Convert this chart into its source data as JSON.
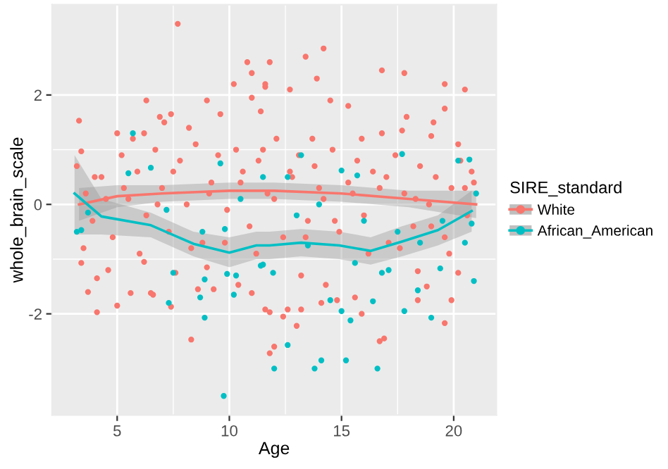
{
  "chart_data": {
    "type": "scatter",
    "xlabel": "Age",
    "ylabel": "whole_brain_scale",
    "legend_title": "SIRE_standard",
    "legend": "right",
    "grid": true,
    "marker": "circle",
    "xlim": [
      2.1,
      21.9
    ],
    "ylim": [
      -3.85,
      3.65
    ],
    "xticks": [
      5,
      10,
      15,
      20
    ],
    "yticks": [
      -2,
      0,
      2
    ],
    "series": [
      {
        "name": "White",
        "color": "#f8766d",
        "x": [
          7.7,
          3.3,
          3.4,
          6.3,
          9.0,
          10.8,
          11.8,
          11.0,
          10.2,
          11.0,
          11.4,
          11.6,
          7.4,
          6.9,
          7.1,
          5.0,
          6.2,
          5.7,
          8.2,
          9.6,
          14.2,
          13.4,
          16.8,
          17.8,
          19.6,
          20.5,
          13.9,
          11.6,
          12.7,
          14.5,
          15.3,
          17.9,
          19.6,
          19.1,
          19.0,
          16.8,
          17.7,
          13.7,
          20.2,
          15.9,
          11.5,
          3.4,
          3.7,
          4.1,
          4.1,
          4.6,
          5.0,
          5.6,
          6.2,
          6.5,
          6.6,
          7.4,
          7.6,
          8.3,
          8.6,
          9.0,
          9.3,
          10.4,
          11.0,
          11.6,
          11.8,
          12.0,
          11.8,
          12.4,
          12.6,
          13.0,
          13.2,
          14.1,
          14.8,
          15.6,
          15.9,
          16.7,
          16.9,
          14.3,
          13.2,
          18.4,
          18.8,
          19.6,
          19.9,
          20.2,
          18.4,
          3.2,
          3.6,
          3.9,
          4.3,
          4.8,
          5.2,
          5.5,
          5.9,
          6.3,
          6.7,
          7.0,
          7.3,
          7.8,
          8.1,
          8.5,
          8.8,
          9.2,
          9.5,
          9.9,
          10.3,
          10.6,
          10.9,
          11.3,
          11.7,
          12.1,
          12.4,
          12.8,
          13.1,
          13.5,
          13.8,
          14.2,
          14.6,
          14.9,
          15.3,
          15.7,
          16.0,
          16.4,
          16.7,
          17.1,
          17.4,
          17.8,
          18.2,
          18.5,
          18.9,
          19.2,
          19.6,
          19.9,
          20.3,
          20.6,
          20.9,
          3.5,
          4.0,
          4.5,
          5.3,
          6.0,
          6.8,
          7.5,
          8.3,
          9.1,
          9.8,
          10.5,
          11.2,
          12.0,
          12.7,
          13.4,
          14.0,
          14.7,
          15.5,
          16.2,
          17.0,
          17.6,
          18.3,
          19.0,
          19.8,
          20.5,
          20.8
        ],
        "values": [
          3.3,
          1.53,
          0.97,
          1.9,
          1.9,
          2.6,
          2.6,
          2.4,
          2.2,
          1.95,
          1.7,
          2.15,
          1.65,
          1.6,
          1.5,
          1.3,
          1.3,
          1.2,
          1.4,
          1.65,
          2.85,
          2.7,
          2.45,
          2.4,
          2.2,
          2.1,
          2.3,
          2.2,
          2.1,
          1.9,
          1.8,
          1.6,
          1.75,
          1.5,
          1.25,
          1.3,
          1.35,
          1.2,
          1.1,
          1.2,
          1.0,
          -1.07,
          -1.6,
          -1.35,
          -1.97,
          -1.2,
          -1.85,
          -1.62,
          -1.05,
          -1.62,
          -1.65,
          -1.87,
          -1.25,
          -2.47,
          -1.55,
          -1.15,
          -1.55,
          -1.47,
          -1.62,
          -1.92,
          -1.97,
          -2.6,
          -2.72,
          -2.05,
          -1.92,
          -2.22,
          -1.92,
          -1.8,
          -1.75,
          -1.7,
          -2.0,
          -2.5,
          -2.45,
          -1.47,
          -1.3,
          -1.75,
          -1.5,
          -2.17,
          -1.75,
          -1.25,
          -1.22,
          0.7,
          0.2,
          -0.3,
          0.5,
          -0.6,
          0.9,
          0.1,
          0.6,
          -0.2,
          1.0,
          0.3,
          -0.5,
          0.8,
          0.0,
          1.1,
          -0.7,
          0.4,
          0.9,
          -0.1,
          1.0,
          0.6,
          -0.4,
          0.8,
          0.2,
          1.2,
          -0.6,
          0.5,
          0.9,
          -0.3,
          0.7,
          0.1,
          1.0,
          -0.5,
          0.4,
          0.8,
          -0.2,
          0.6,
          0.3,
          -0.7,
          0.9,
          0.2,
          -0.4,
          0.7,
          0.0,
          0.5,
          -0.6,
          0.3,
          0.8,
          -0.2,
          0.4,
          -0.8,
          0.5,
          0.1,
          0.3,
          -0.9,
          0.0,
          0.6,
          -0.8,
          0.2,
          -0.7,
          0.4,
          -0.9,
          0.1,
          0.6,
          -0.6,
          0.3,
          -0.3,
          0.2,
          -0.9,
          0.5,
          -0.8,
          0.1,
          -0.4,
          -0.9,
          0.3,
          0.6
        ]
      },
      {
        "name": "African_American",
        "color": "#00bfc4",
        "x": [
          5.7,
          6.5,
          9.6,
          11.5,
          5.5,
          17.7,
          13.2,
          20.2,
          20.7,
          15.0,
          15.7,
          12.6,
          3.2,
          3.4,
          3.7,
          7.3,
          8.9,
          7.5,
          8.7,
          8.9,
          9.75,
          10.2,
          9.9,
          10.3,
          12.0,
          11.4,
          11.95,
          12.6,
          13.8,
          14.1,
          15.2,
          16.6,
          15.0,
          15.4,
          14.5,
          16.4,
          17.8,
          19.0,
          18.4,
          19.4,
          20.9,
          16.8,
          17.1,
          15.6,
          13.5,
          11.5,
          7.2,
          8.8,
          9.8,
          10.5,
          13.0,
          14.0,
          16.0,
          17.5,
          18.5,
          19.5,
          20.5,
          20.8,
          21.0
        ],
        "values": [
          1.3,
          0.67,
          0.75,
          0.5,
          0.57,
          0.92,
          0.9,
          0.8,
          0.82,
          0.62,
          0.53,
          0.5,
          -0.5,
          -0.47,
          -0.15,
          -1.8,
          -2.07,
          -1.25,
          -1.7,
          -1.37,
          -3.5,
          -1.65,
          -1.27,
          -1.3,
          -3.0,
          -1.12,
          -1.25,
          -2.57,
          -3.0,
          -2.85,
          -2.85,
          -3.0,
          -1.95,
          -2.12,
          -1.75,
          -1.77,
          -1.95,
          -2.07,
          -1.57,
          -1.17,
          -1.4,
          -1.25,
          -1.2,
          -1.07,
          -0.75,
          -1.1,
          -0.1,
          -0.5,
          -0.45,
          0.1,
          -0.2,
          0.0,
          -0.3,
          -0.5,
          -0.7,
          -0.3,
          -0.7,
          -0.35,
          0.2
        ]
      },
      {
        "type": "line",
        "marker": "none",
        "color": "#f8766d",
        "x": [
          3.3,
          5,
          7,
          10,
          12,
          15,
          18,
          21
        ],
        "values": [
          0.0,
          0.15,
          0.2,
          0.25,
          0.25,
          0.2,
          0.1,
          0.0
        ],
        "lower": [
          -0.3,
          -0.05,
          0.05,
          0.1,
          0.1,
          0.05,
          -0.05,
          -0.25
        ],
        "upper": [
          0.3,
          0.35,
          0.35,
          0.4,
          0.4,
          0.35,
          0.25,
          0.25
        ]
      },
      {
        "type": "line",
        "marker": "none",
        "color": "#00bfc4",
        "x": [
          3.1,
          4.3,
          6.5,
          8.4,
          10.0,
          11.2,
          11.8,
          13.2,
          14.9,
          16.3,
          17.7,
          19.3,
          20.8
        ],
        "values": [
          0.2,
          -0.22,
          -0.38,
          -0.72,
          -0.88,
          -0.75,
          -0.75,
          -0.7,
          -0.75,
          -0.85,
          -0.68,
          -0.47,
          -0.12
        ],
        "lower": [
          -0.55,
          -0.55,
          -0.6,
          -0.95,
          -1.15,
          -1.0,
          -1.0,
          -0.95,
          -1.0,
          -1.1,
          -0.95,
          -0.75,
          -0.5
        ],
        "upper": [
          0.9,
          0.1,
          -0.15,
          -0.5,
          -0.6,
          -0.5,
          -0.5,
          -0.45,
          -0.5,
          -0.6,
          -0.4,
          -0.2,
          0.25
        ]
      }
    ]
  }
}
